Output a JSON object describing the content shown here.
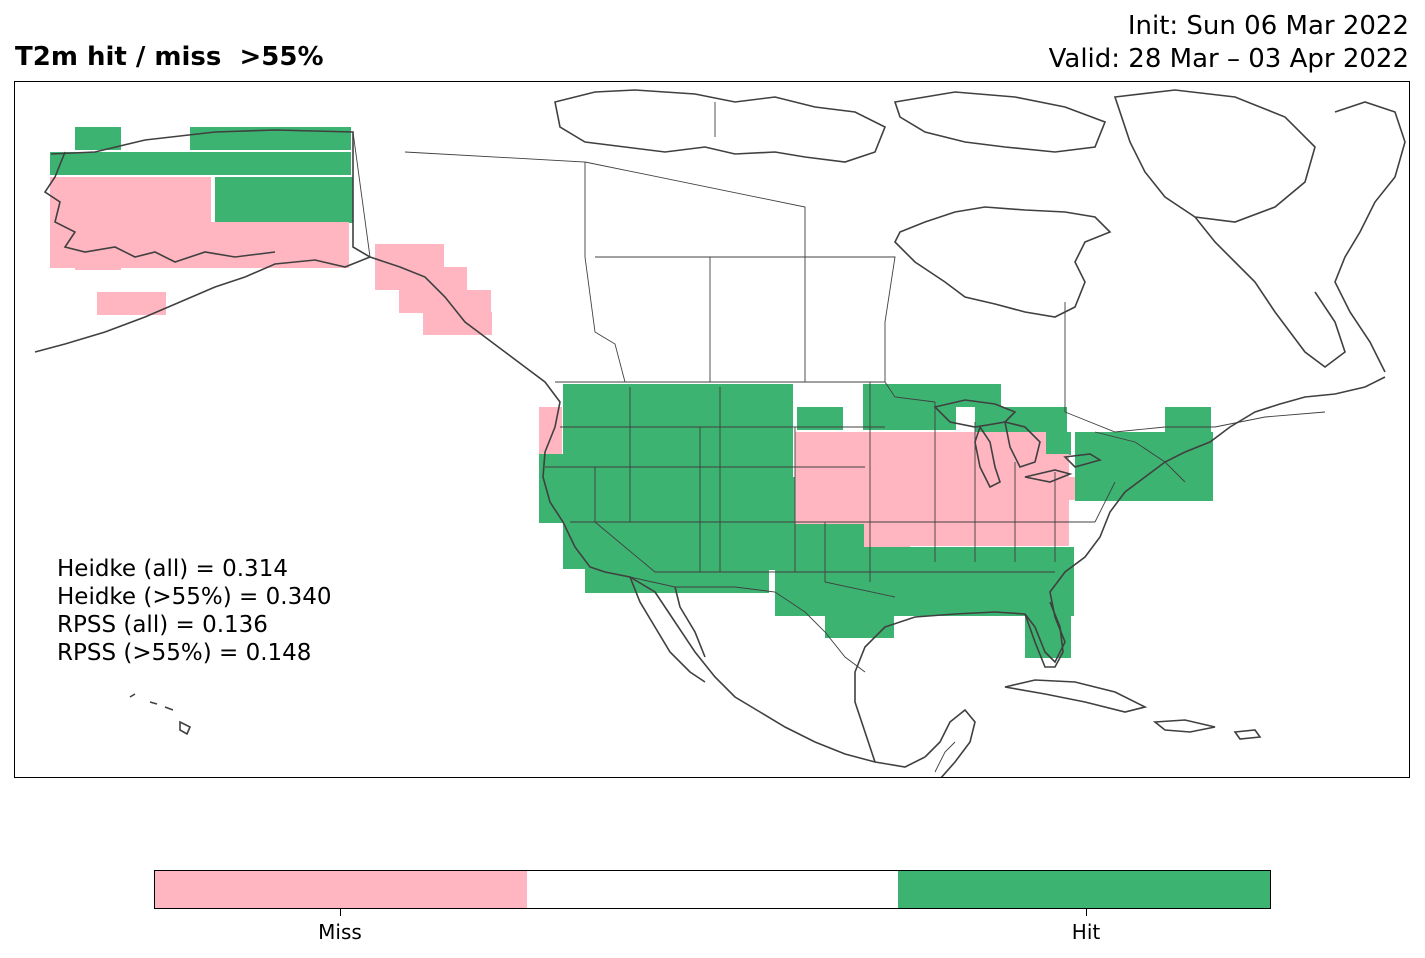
{
  "title": "T2m hit / miss  >55%",
  "init_label": "Init: Sun 06 Mar 2022",
  "valid_label": "Valid: 28 Mar – 03 Apr 2022",
  "colors": {
    "miss": "#ffb6c1",
    "neutral": "#ffffff",
    "hit": "#3cb371",
    "coast": "#404040"
  },
  "stats": [
    "Heidke (all) = 0.314",
    "Heidke (>55%) = 0.340",
    "RPSS (all) = 0.136",
    "RPSS (>55%) = 0.148"
  ],
  "legend": {
    "miss_label": "Miss",
    "hit_label": "Hit"
  }
}
